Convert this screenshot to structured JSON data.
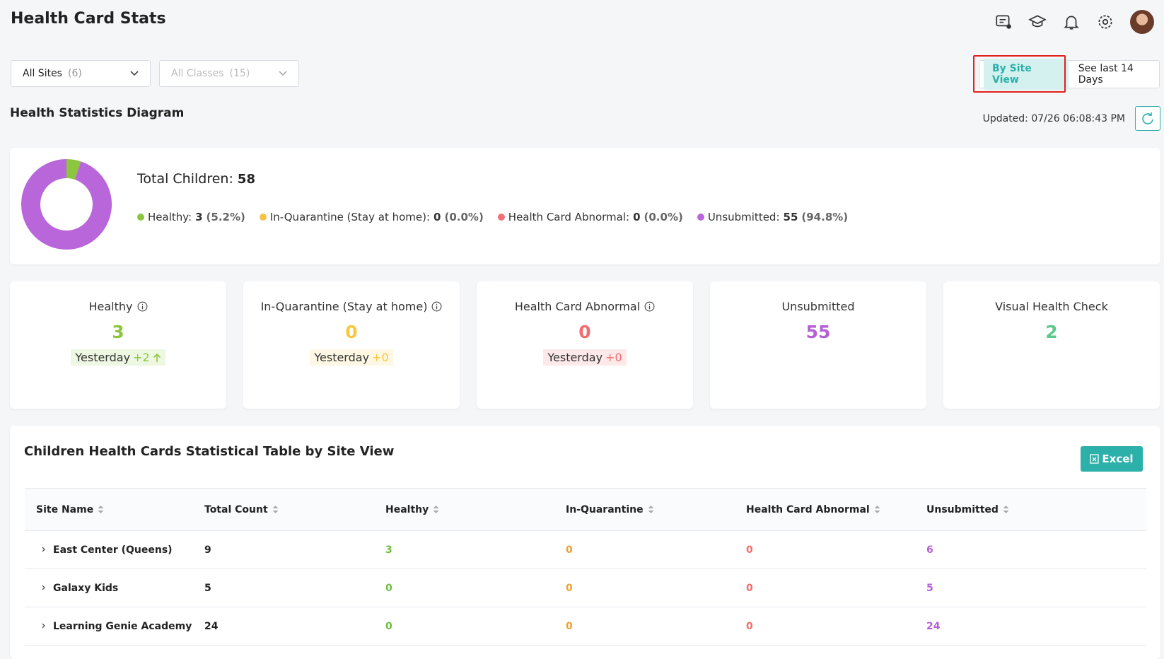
{
  "header": {
    "title": "Health Card Stats"
  },
  "filters": [
    {
      "label": "All Sites",
      "count": "(6)",
      "disabled": false
    },
    {
      "label": "All Classes",
      "count": "(15)",
      "disabled": true
    }
  ],
  "view_toggle": {
    "active": "By Site View",
    "other": "See last 14 Days"
  },
  "section_title": "Health Statistics Diagram",
  "updated": "Updated: 07/26 06:08:43 PM",
  "summary": {
    "total_label": "Total Children:",
    "total": 58,
    "legend": [
      {
        "label": "Healthy:",
        "value": 3,
        "percent": "(5.2%)",
        "color": "#8cc63f"
      },
      {
        "label": "In-Quarantine (Stay at home):",
        "value": 0,
        "percent": "(0.0%)",
        "color": "#f7c244"
      },
      {
        "label": "Health Card Abnormal:",
        "value": 0,
        "percent": "(0.0%)",
        "color": "#f07178"
      },
      {
        "label": "Unsubmitted:",
        "value": 55,
        "percent": "(94.8%)",
        "color": "#b866d9"
      }
    ]
  },
  "cards": [
    {
      "title": "Healthy",
      "info": true,
      "value": 3,
      "color": "#8cc63f",
      "change_label": "Yesterday",
      "change": "+2",
      "trend": "up"
    },
    {
      "title": "In-Quarantine (Stay at home)",
      "info": true,
      "value": 0,
      "color": "#f9c740",
      "change_label": "Yesterday",
      "change": "+0"
    },
    {
      "title": "Health Card Abnormal",
      "info": true,
      "value": 0,
      "color": "#f26d6d",
      "change_label": "Yesterday",
      "change": "+0"
    },
    {
      "title": "Unsubmitted",
      "info": false,
      "value": 55,
      "color": "#b55fd6"
    },
    {
      "title": "Visual Health Check",
      "info": false,
      "value": 2,
      "color": "#5cc98a"
    }
  ],
  "table": {
    "title": "Children Health Cards Statistical Table by Site View",
    "excel": "Excel",
    "columns": [
      {
        "name": "Site Name",
        "color": "#222222"
      },
      {
        "name": "Total Count",
        "color": "#222222"
      },
      {
        "name": "Healthy",
        "color": "#6cbf3a"
      },
      {
        "name": "In-Quarantine",
        "color": "#f0a030"
      },
      {
        "name": "Health Card Abnormal",
        "color": "#f26d6d"
      },
      {
        "name": "Unsubmitted",
        "color": "#b55fd6"
      }
    ],
    "rows": [
      [
        "East Center (Queens)",
        9,
        3,
        0,
        0,
        6
      ],
      [
        "Galaxy Kids",
        5,
        0,
        0,
        0,
        5
      ],
      [
        "Learning Genie Academy",
        24,
        0,
        0,
        0,
        24
      ]
    ]
  }
}
